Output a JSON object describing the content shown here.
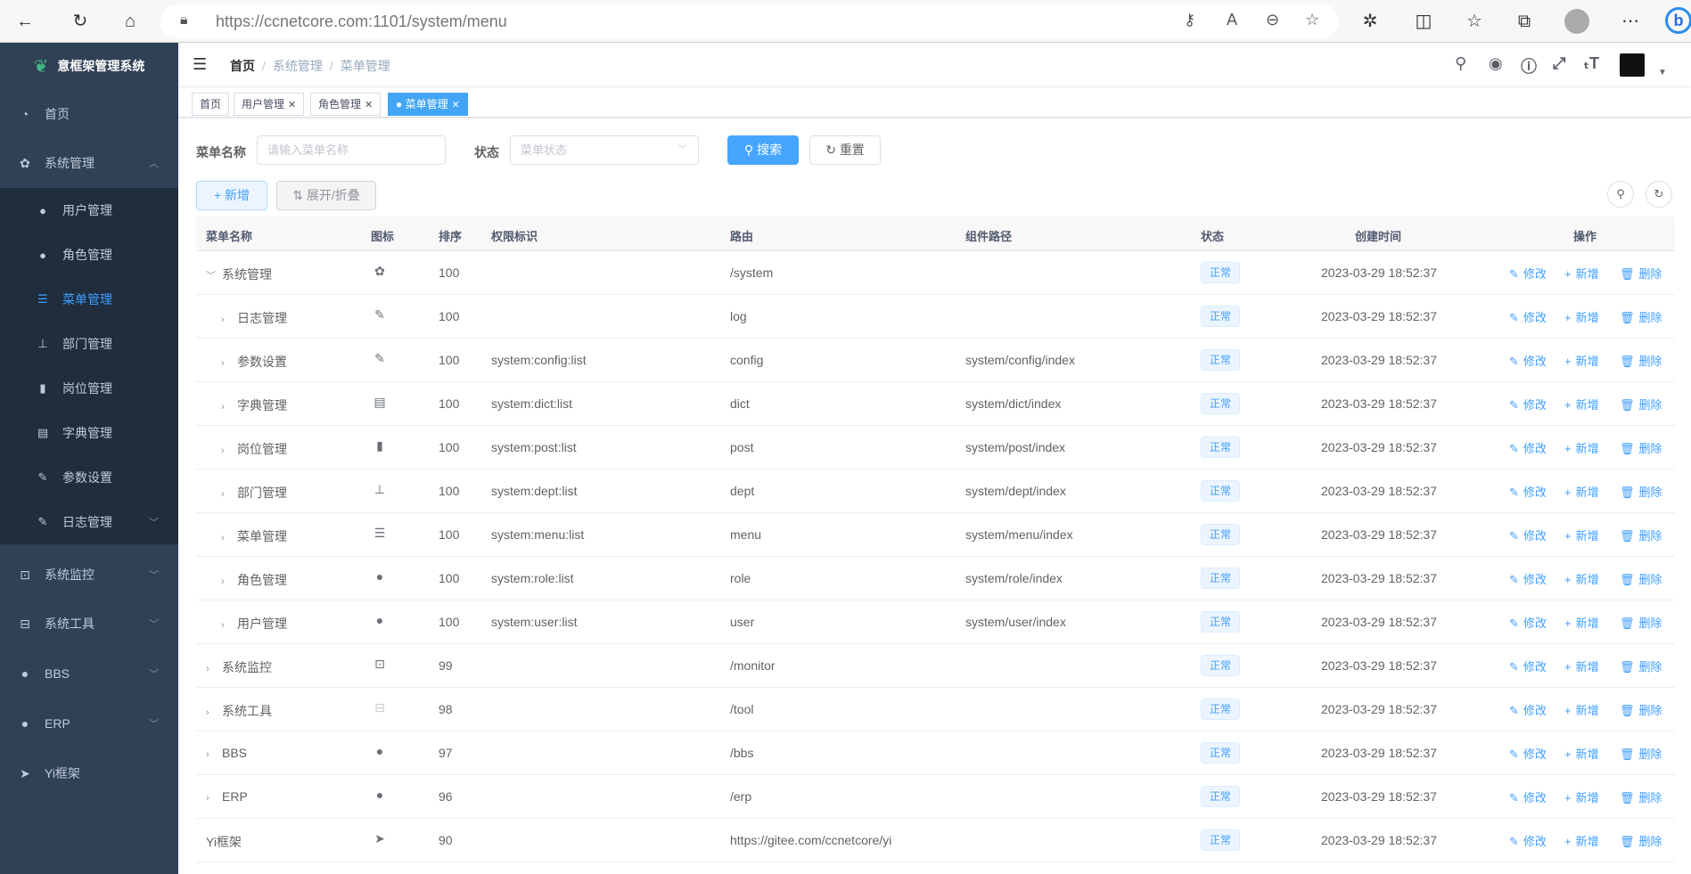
{
  "browser": {
    "url_host": "https://ccnetcore.com",
    "url_rest": ":1101/system/menu"
  },
  "sidebar": {
    "title": "意框架管理系统",
    "items": [
      {
        "label": "首页",
        "icon": "dashboard-icon"
      },
      {
        "label": "系统管理",
        "icon": "gear-icon",
        "expanded": true
      },
      {
        "label": "系统监控",
        "icon": "monitor-icon"
      },
      {
        "label": "系统工具",
        "icon": "toolbox-icon"
      },
      {
        "label": "BBS",
        "icon": "globe-icon"
      },
      {
        "label": "ERP",
        "icon": "globe-icon"
      },
      {
        "label": "Yi框架",
        "icon": "send-icon"
      }
    ],
    "sub_items": [
      {
        "label": "用户管理",
        "icon": "user-icon"
      },
      {
        "label": "角色管理",
        "icon": "users-icon"
      },
      {
        "label": "菜单管理",
        "icon": "tree-table-icon",
        "active": true
      },
      {
        "label": "部门管理",
        "icon": "org-icon"
      },
      {
        "label": "岗位管理",
        "icon": "post-icon"
      },
      {
        "label": "字典管理",
        "icon": "dict-icon"
      },
      {
        "label": "参数设置",
        "icon": "edit-icon"
      },
      {
        "label": "日志管理",
        "icon": "log-icon"
      }
    ]
  },
  "breadcrumb": [
    "首页",
    "系统管理",
    "菜单管理"
  ],
  "tags": [
    {
      "label": "首页"
    },
    {
      "label": "用户管理"
    },
    {
      "label": "角色管理"
    },
    {
      "label": "菜单管理",
      "active": true
    }
  ],
  "search": {
    "name_label": "菜单名称",
    "name_placeholder": "请输入菜单名称",
    "status_label": "状态",
    "status_placeholder": "菜单状态",
    "search_btn": "搜索",
    "reset_btn": "重置"
  },
  "toolbar": {
    "add_btn": "新增",
    "expand_btn": "展开/折叠"
  },
  "table": {
    "headers": [
      "菜单名称",
      "图标",
      "排序",
      "权限标识",
      "路由",
      "组件路径",
      "状态",
      "创建时间",
      "操作"
    ],
    "actions": [
      "修改",
      "新增",
      "删除"
    ],
    "rows": [
      {
        "name": "系统管理",
        "level": 0,
        "arrow": "down",
        "icon": "gear-icon",
        "sort": "100",
        "perms": "",
        "path": "/system",
        "component": "",
        "status": "正常",
        "created": "2023-03-29 18:52:37"
      },
      {
        "name": "日志管理",
        "level": 1,
        "arrow": "right",
        "icon": "log-icon",
        "sort": "100",
        "perms": "",
        "path": "log",
        "component": "",
        "status": "正常",
        "created": "2023-03-29 18:52:37"
      },
      {
        "name": "参数设置",
        "level": 1,
        "arrow": "right",
        "icon": "edit-icon",
        "sort": "100",
        "perms": "system:config:list",
        "path": "config",
        "component": "system/config/index",
        "status": "正常",
        "created": "2023-03-29 18:52:37"
      },
      {
        "name": "字典管理",
        "level": 1,
        "arrow": "right",
        "icon": "dict-icon",
        "sort": "100",
        "perms": "system:dict:list",
        "path": "dict",
        "component": "system/dict/index",
        "status": "正常",
        "created": "2023-03-29 18:52:37"
      },
      {
        "name": "岗位管理",
        "level": 1,
        "arrow": "right",
        "icon": "post-icon",
        "sort": "100",
        "perms": "system:post:list",
        "path": "post",
        "component": "system/post/index",
        "status": "正常",
        "created": "2023-03-29 18:52:37"
      },
      {
        "name": "部门管理",
        "level": 1,
        "arrow": "right",
        "icon": "org-icon",
        "sort": "100",
        "perms": "system:dept:list",
        "path": "dept",
        "component": "system/dept/index",
        "status": "正常",
        "created": "2023-03-29 18:52:37"
      },
      {
        "name": "菜单管理",
        "level": 1,
        "arrow": "right",
        "icon": "tree-table-icon",
        "sort": "100",
        "perms": "system:menu:list",
        "path": "menu",
        "component": "system/menu/index",
        "status": "正常",
        "created": "2023-03-29 18:52:37"
      },
      {
        "name": "角色管理",
        "level": 1,
        "arrow": "right",
        "icon": "users-icon",
        "sort": "100",
        "perms": "system:role:list",
        "path": "role",
        "component": "system/role/index",
        "status": "正常",
        "created": "2023-03-29 18:52:37"
      },
      {
        "name": "用户管理",
        "level": 1,
        "arrow": "right",
        "icon": "user-icon",
        "sort": "100",
        "perms": "system:user:list",
        "path": "user",
        "component": "system/user/index",
        "status": "正常",
        "created": "2023-03-29 18:52:37"
      },
      {
        "name": "系统监控",
        "level": 0,
        "arrow": "right",
        "icon": "monitor-icon",
        "sort": "99",
        "perms": "",
        "path": "/monitor",
        "component": "",
        "status": "正常",
        "created": "2023-03-29 18:52:37"
      },
      {
        "name": "系统工具",
        "level": 0,
        "arrow": "right",
        "icon": "toolbox-icon",
        "sort": "98",
        "perms": "",
        "path": "/tool",
        "component": "",
        "status": "正常",
        "created": "2023-03-29 18:52:37"
      },
      {
        "name": "BBS",
        "level": 0,
        "arrow": "right",
        "icon": "globe-icon",
        "sort": "97",
        "perms": "",
        "path": "/bbs",
        "component": "",
        "status": "正常",
        "created": "2023-03-29 18:52:37"
      },
      {
        "name": "ERP",
        "level": 0,
        "arrow": "right",
        "icon": "globe-icon",
        "sort": "96",
        "perms": "",
        "path": "/erp",
        "component": "",
        "status": "正常",
        "created": "2023-03-29 18:52:37"
      },
      {
        "name": "Yi框架",
        "level": 0,
        "arrow": "",
        "icon": "send-icon",
        "sort": "90",
        "perms": "",
        "path": "https://gitee.com/ccnetcore/yi",
        "component": "",
        "status": "正常",
        "created": "2023-03-29 18:52:37"
      }
    ]
  },
  "colors": {
    "sidebar_bg": "#304156",
    "submenu_bg": "#1f2d3d",
    "accent": "#409eff"
  }
}
